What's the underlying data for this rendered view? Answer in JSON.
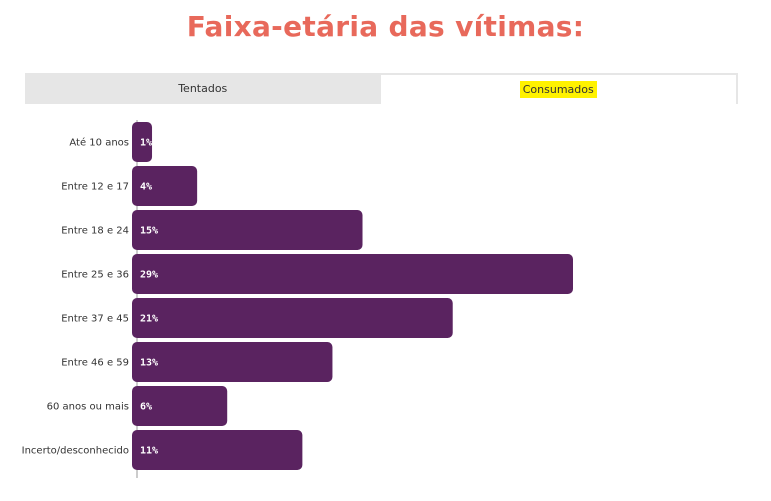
{
  "title": "Faixa-etária das vítimas:",
  "colors": {
    "title": "#e8695b",
    "bar": "#5a2360",
    "highlight": "#fff200",
    "axis": "#999999"
  },
  "tabs": [
    {
      "label": "Tentados",
      "active": false
    },
    {
      "label": "Consumados",
      "active": true
    }
  ],
  "chart_data": {
    "type": "bar",
    "orientation": "horizontal",
    "categories": [
      "Até 10 anos",
      "Entre 12 e 17",
      "Entre 18 e 24",
      "Entre 25 e 36",
      "Entre 37 e 45",
      "Entre 46 e 59",
      "60 anos ou mais",
      "Incerto/desconhecido"
    ],
    "values": [
      1,
      4,
      15,
      29,
      21,
      13,
      6,
      11
    ],
    "value_labels": [
      "1%",
      "4%",
      "15%",
      "29%",
      "21%",
      "13%",
      "6%",
      "11%"
    ],
    "xlim": [
      0,
      29
    ],
    "grid": false,
    "legend": "none"
  }
}
